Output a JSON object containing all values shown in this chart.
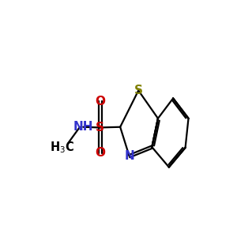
{
  "background_color": "#ffffff",
  "bond_color": "#000000",
  "bond_width": 1.6,
  "colors": {
    "S_thiazole": "#808000",
    "S_sulfonyl": "#cc0000",
    "O": "#cc0000",
    "N": "#3333cc",
    "C": "#000000"
  },
  "figsize": [
    3.0,
    3.0
  ],
  "dpi": 100,
  "xlim": [
    0,
    10
  ],
  "ylim": [
    0,
    10
  ],
  "font_size": 11
}
